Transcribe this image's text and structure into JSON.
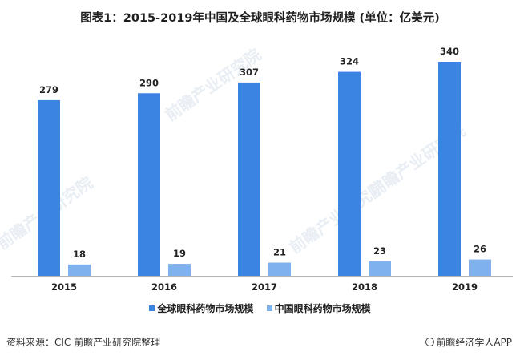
{
  "title": "图表1：2015-2019年中国及全球眼科药物市场规模 (单位：亿美元)",
  "watermark_text": "前瞻产业研究院",
  "source_text": "资料来源：CIC 前瞻产业研究院整理",
  "brand_text": "前瞻经济学人APP",
  "colors": {
    "global": "#3c84e1",
    "china": "#7fb1ee"
  },
  "chart_data": {
    "type": "bar",
    "categories": [
      "2015",
      "2016",
      "2017",
      "2018",
      "2019"
    ],
    "series": [
      {
        "name": "全球眼科药物市场规模",
        "values": [
          279,
          290,
          307,
          324,
          340
        ]
      },
      {
        "name": "中国眼科药物市场规模",
        "values": [
          18,
          19,
          21,
          23,
          26
        ]
      }
    ],
    "title": "图表1：2015-2019年中国及全球眼科药物市场规模 (单位：亿美元)",
    "ylim": [
      0,
      340
    ],
    "grid": false,
    "legend_position": "bottom"
  }
}
